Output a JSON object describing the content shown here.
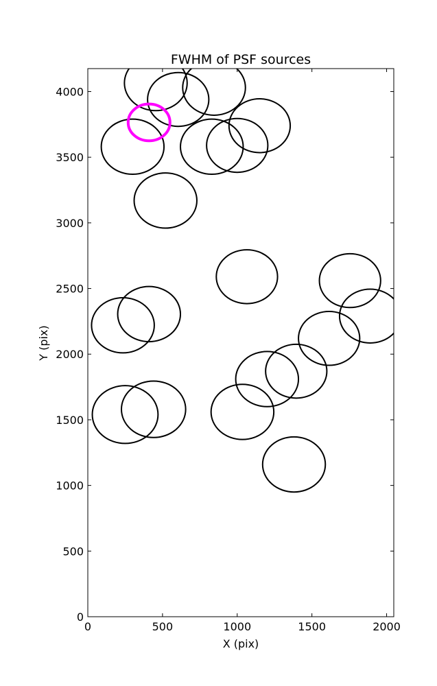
{
  "chart_data": {
    "type": "scatter",
    "title": "FWHM of PSF sources",
    "xlabel": "X (pix)",
    "ylabel": "Y (pix)",
    "xlim": [
      0,
      2048
    ],
    "ylim": [
      0,
      4175
    ],
    "xticks": [
      0,
      500,
      1000,
      1500,
      2000
    ],
    "yticks": [
      0,
      500,
      1000,
      1500,
      2000,
      2500,
      3000,
      3500,
      4000
    ],
    "grid": false,
    "marker": "circle",
    "radius_units": "pix",
    "series": [
      {
        "color": "#000000",
        "points": [
          {
            "x": 455,
            "y": 4065,
            "r": 210
          },
          {
            "x": 845,
            "y": 4030,
            "r": 210
          },
          {
            "x": 605,
            "y": 3940,
            "r": 205
          },
          {
            "x": 1150,
            "y": 3740,
            "r": 205
          },
          {
            "x": 300,
            "y": 3580,
            "r": 210
          },
          {
            "x": 830,
            "y": 3580,
            "r": 210
          },
          {
            "x": 1000,
            "y": 3590,
            "r": 205
          },
          {
            "x": 520,
            "y": 3170,
            "r": 210
          },
          {
            "x": 1065,
            "y": 2590,
            "r": 205
          },
          {
            "x": 1755,
            "y": 2560,
            "r": 205
          },
          {
            "x": 410,
            "y": 2305,
            "r": 210
          },
          {
            "x": 235,
            "y": 2220,
            "r": 210
          },
          {
            "x": 1890,
            "y": 2290,
            "r": 205
          },
          {
            "x": 1615,
            "y": 2120,
            "r": 205
          },
          {
            "x": 1395,
            "y": 1870,
            "r": 205
          },
          {
            "x": 1200,
            "y": 1810,
            "r": 210
          },
          {
            "x": 440,
            "y": 1580,
            "r": 215
          },
          {
            "x": 250,
            "y": 1540,
            "r": 220
          },
          {
            "x": 1035,
            "y": 1560,
            "r": 210
          },
          {
            "x": 1380,
            "y": 1160,
            "r": 210
          }
        ]
      },
      {
        "color": "#ff00ff",
        "points": [
          {
            "x": 410,
            "y": 3765,
            "r": 140
          }
        ]
      }
    ]
  }
}
